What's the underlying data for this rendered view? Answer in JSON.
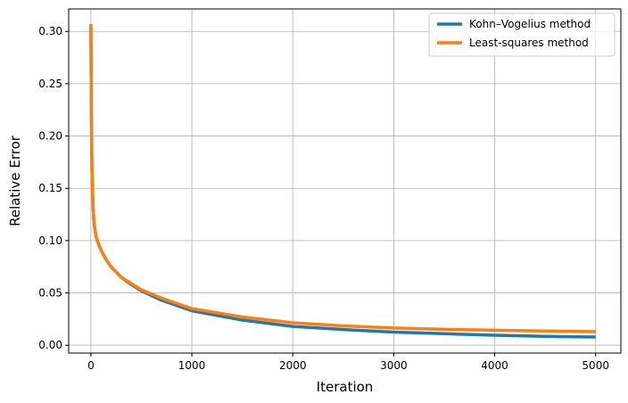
{
  "chart_data": {
    "type": "line",
    "xlabel": "Iteration",
    "ylabel": "Relative Error",
    "xlim": [
      -220,
      5250
    ],
    "ylim": [
      -0.0075,
      0.3215
    ],
    "xticks": [
      0,
      1000,
      2000,
      3000,
      4000,
      5000
    ],
    "xtick_labels": [
      "0",
      "1000",
      "2000",
      "3000",
      "4000",
      "5000"
    ],
    "yticks": [
      0.0,
      0.05,
      0.1,
      0.15,
      0.2,
      0.25,
      0.3
    ],
    "ytick_labels": [
      "0.00",
      "0.05",
      "0.10",
      "0.15",
      "0.20",
      "0.25",
      "0.30"
    ],
    "grid": true,
    "legend_position": "top-right",
    "series": [
      {
        "name": "Kohn–Vogelius method",
        "color": "#1f77b4",
        "x": [
          0,
          5,
          10,
          20,
          30,
          50,
          75,
          100,
          150,
          200,
          300,
          400,
          500,
          700,
          1000,
          1500,
          2000,
          2500,
          3000,
          3500,
          4000,
          4500,
          5000
        ],
        "y": [
          0.305,
          0.22,
          0.17,
          0.135,
          0.118,
          0.104,
          0.097,
          0.091,
          0.082,
          0.075,
          0.065,
          0.058,
          0.052,
          0.043,
          0.033,
          0.024,
          0.018,
          0.015,
          0.0125,
          0.011,
          0.0095,
          0.0085,
          0.0078
        ]
      },
      {
        "name": "Least-squares method",
        "color": "#ff7f0e",
        "x": [
          0,
          5,
          10,
          20,
          30,
          50,
          75,
          100,
          150,
          200,
          300,
          400,
          500,
          700,
          1000,
          1500,
          2000,
          2500,
          3000,
          3500,
          4000,
          4500,
          5000
        ],
        "y": [
          0.307,
          0.22,
          0.17,
          0.135,
          0.118,
          0.104,
          0.097,
          0.091,
          0.082,
          0.075,
          0.065,
          0.059,
          0.053,
          0.045,
          0.035,
          0.027,
          0.0215,
          0.0185,
          0.0165,
          0.0152,
          0.0143,
          0.0136,
          0.013
        ]
      }
    ]
  }
}
